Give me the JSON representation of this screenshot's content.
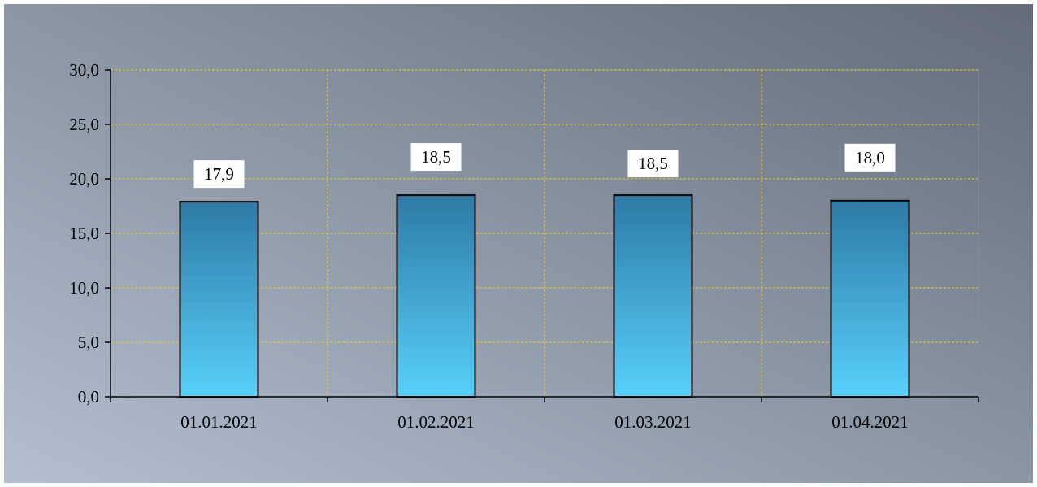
{
  "chart_data": {
    "type": "bar",
    "categories": [
      "01.01.2021",
      "01.02.2021",
      "01.03.2021",
      "01.04.2021"
    ],
    "values": [
      17.9,
      18.5,
      18.5,
      18.0
    ],
    "data_labels": [
      "17,9",
      "18,5",
      "18,5",
      "18,0"
    ],
    "yticks": [
      0,
      5,
      10,
      15,
      20,
      25,
      30
    ],
    "ytick_labels": [
      "0,0",
      "5,0",
      "10,0",
      "15,0",
      "20,0",
      "25,0",
      "30,0"
    ],
    "ylim": [
      0,
      30
    ],
    "grid": true,
    "title": "",
    "xlabel": "",
    "ylabel": "",
    "colors": {
      "bar_top": "#2e7aa6",
      "bar_bottom": "#57d0fb",
      "bar_stroke": "#000000",
      "grid": "#e7d21c",
      "background_light": "#b3bfd0",
      "background_dark": "#636c78"
    }
  }
}
